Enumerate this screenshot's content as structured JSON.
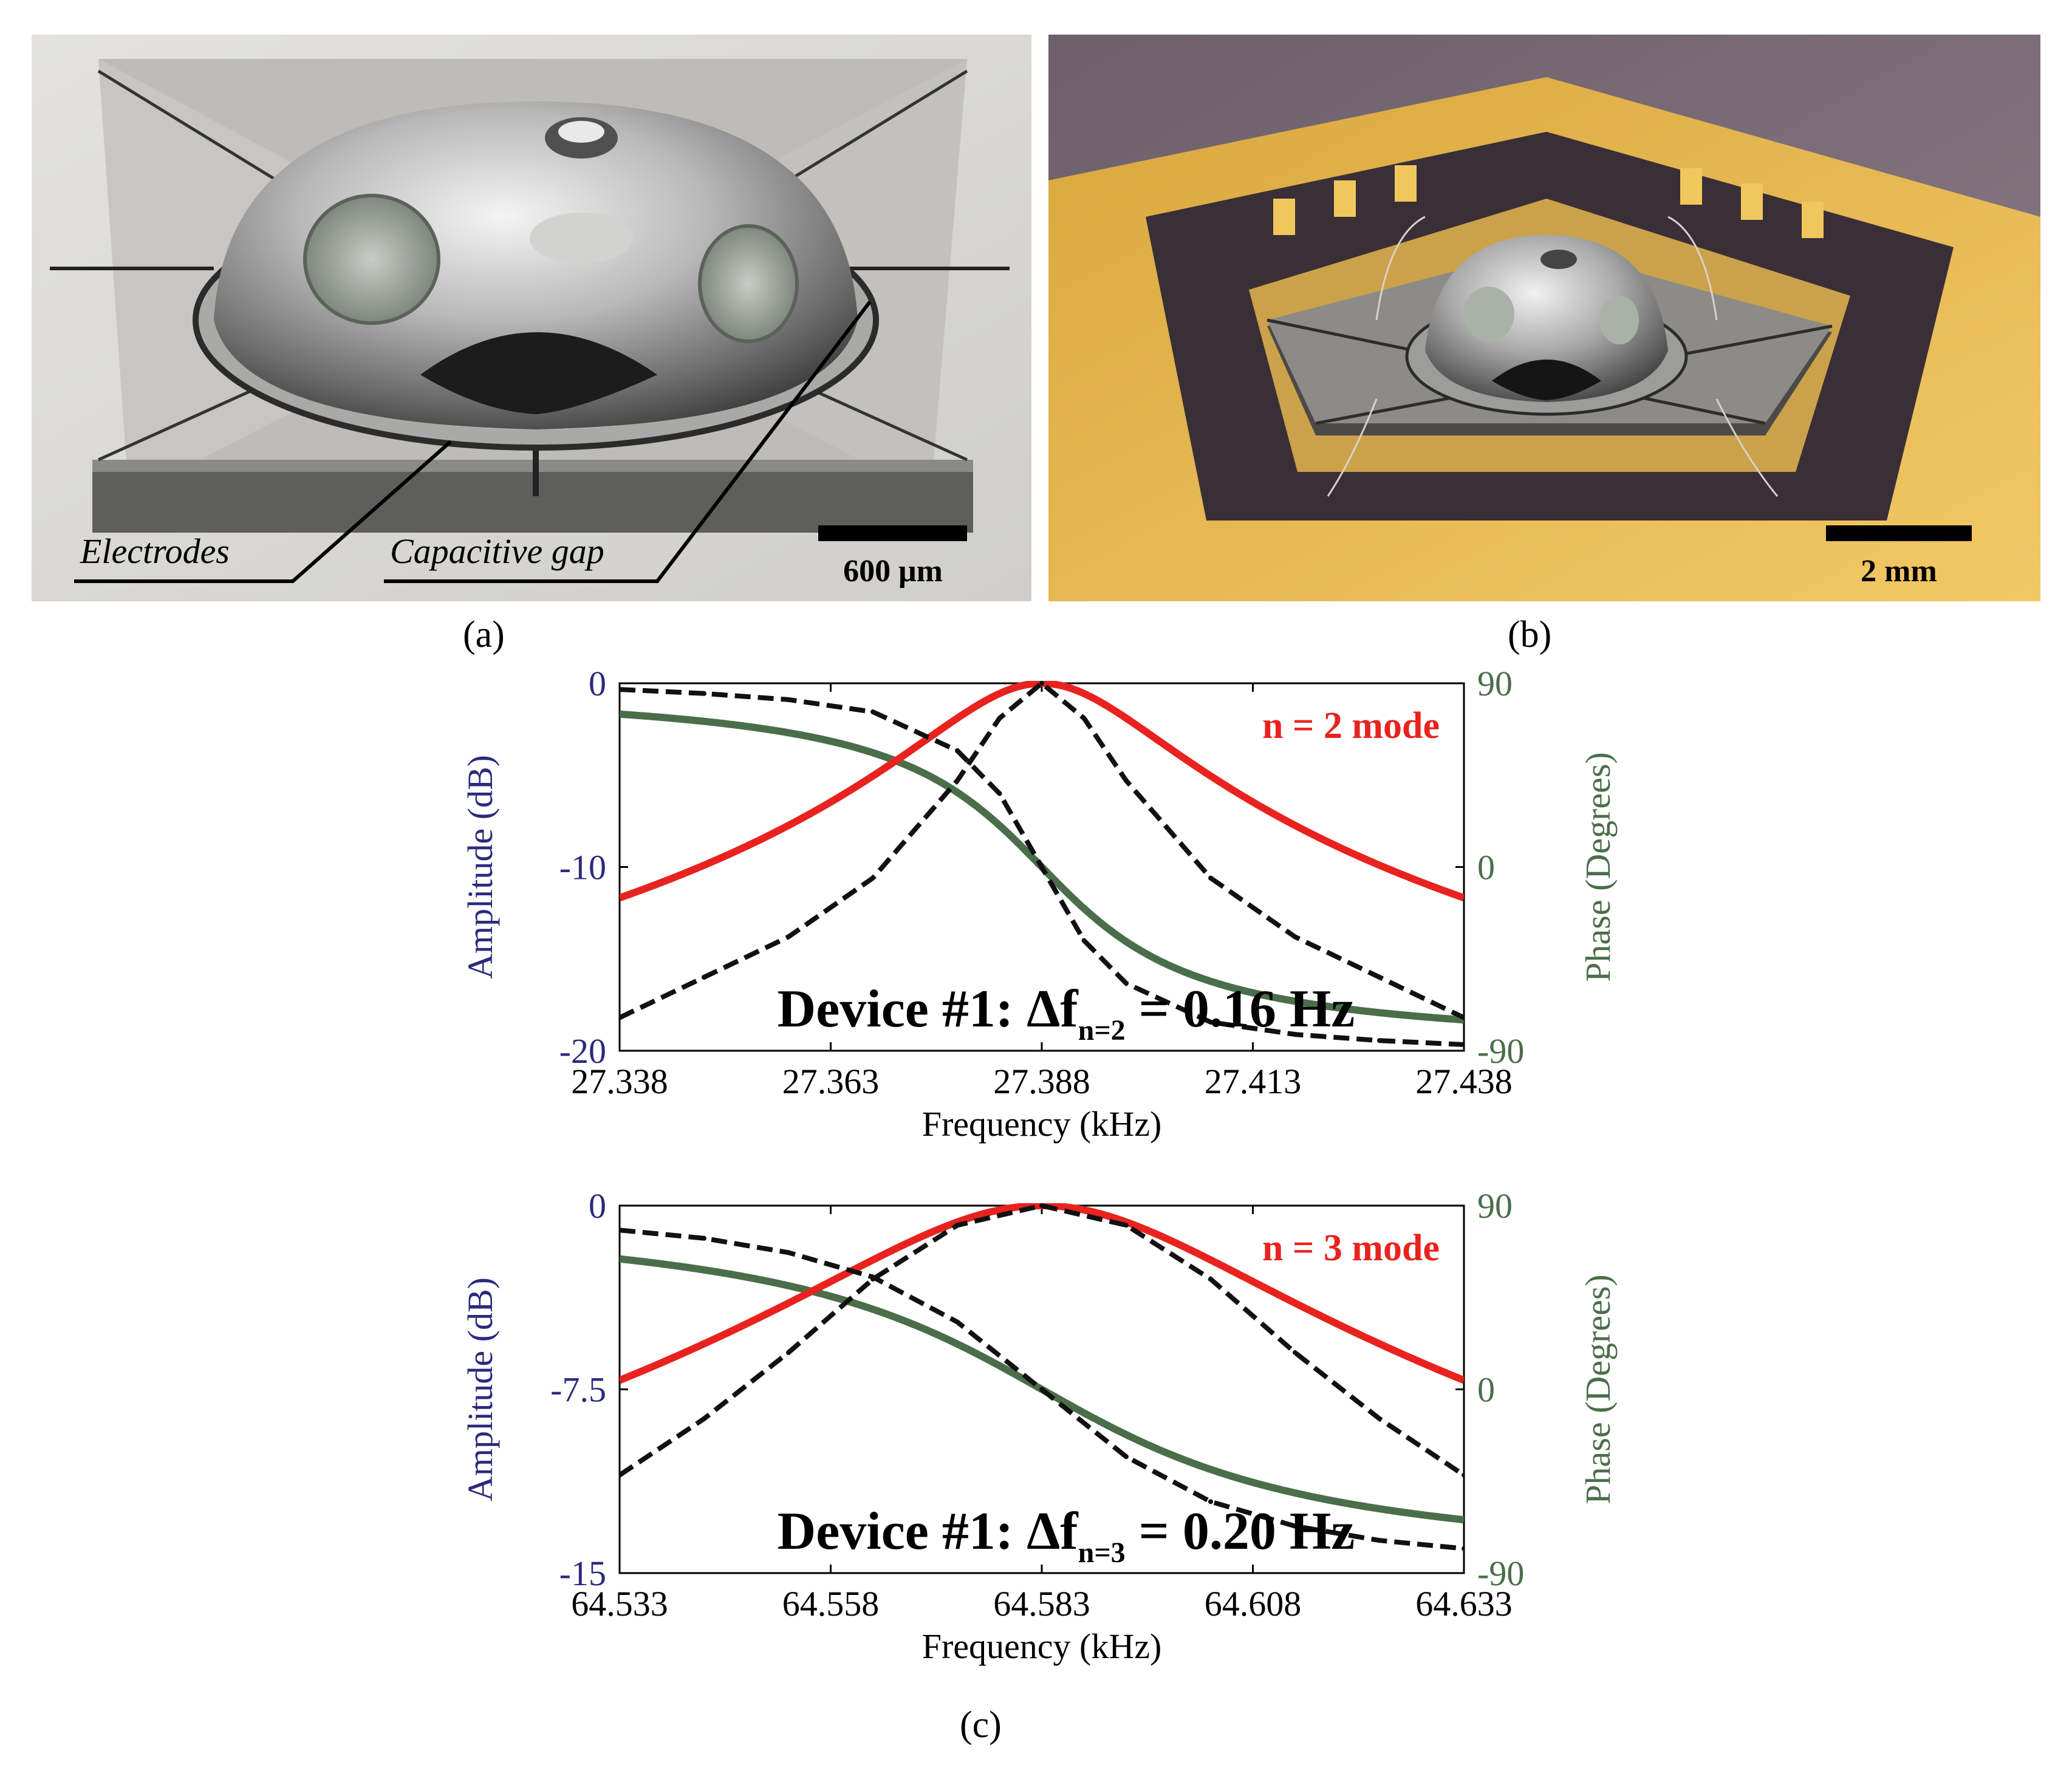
{
  "photo_a": {
    "labels": [
      "Electrodes",
      "Capacitive gap"
    ],
    "scale_bar": "600 μm",
    "caption": "(a)"
  },
  "photo_b": {
    "scale_bar": "2 mm",
    "caption": "(b)"
  },
  "panel_c_caption": "(c)",
  "colors": {
    "amplitude_axis": "#2b2a7d",
    "phase_axis": "#4a6e4a",
    "amplitude_fit": "#e8231f",
    "phase_fit": "#4a6e4a",
    "measured": "#111111",
    "mode_label": "#e8231f"
  },
  "chart_data": [
    {
      "type": "line",
      "mode_label": "n = 2 mode",
      "annotation": {
        "prefix": "Device #1: Δf",
        "subscript": "n=2",
        "suffix": " = 0.16 Hz"
      },
      "xlabel": "Frequency (kHz)",
      "ylabel_left": "Amplitude (dB)",
      "ylabel_right": "Phase (Degrees)",
      "xlim": [
        27.338,
        27.438
      ],
      "ylim_left": [
        -20,
        0
      ],
      "ylim_right": [
        -90,
        90
      ],
      "x_ticks": [
        "27.338",
        "27.363",
        "27.388",
        "27.413",
        "27.438"
      ],
      "y_ticks_left": [
        "0",
        "-10",
        "-20"
      ],
      "y_ticks_right": [
        "90",
        "0",
        "-90"
      ],
      "center_khz": 27.388,
      "half_width_khz": 0.0135,
      "series": [
        {
          "quantity": "amplitude",
          "x": [
            27.338,
            27.348,
            27.358,
            27.368,
            27.378,
            27.383,
            27.388,
            27.393,
            27.398,
            27.408,
            27.418,
            27.428,
            27.438
          ],
          "y": [
            -18.2,
            -16.0,
            -13.8,
            -10.6,
            -5.3,
            -1.9,
            0.0,
            -1.9,
            -5.3,
            -10.6,
            -13.8,
            -16.0,
            -18.2
          ]
        },
        {
          "quantity": "phase",
          "x": [
            27.338,
            27.348,
            27.358,
            27.368,
            27.378,
            27.383,
            27.388,
            27.393,
            27.398,
            27.408,
            27.418,
            27.428,
            27.438
          ],
          "y": [
            87,
            85,
            82,
            76,
            57,
            36,
            0,
            -36,
            -57,
            -76,
            -82,
            -85,
            -87
          ]
        }
      ]
    },
    {
      "type": "line",
      "mode_label": "n = 3 mode",
      "annotation": {
        "prefix": "Device #1: Δf",
        "subscript": "n=3",
        "suffix": " = 0.20 Hz"
      },
      "xlabel": "Frequency (kHz)",
      "ylabel_left": "Amplitude (dB)",
      "ylabel_right": "Phase (Degrees)",
      "xlim": [
        64.533,
        64.633
      ],
      "ylim_left": [
        -15,
        0
      ],
      "ylim_right": [
        -90,
        90
      ],
      "x_ticks": [
        "64.533",
        "64.558",
        "64.583",
        "64.608",
        "64.633"
      ],
      "y_ticks_left": [
        "0",
        "-7.5",
        "-15"
      ],
      "y_ticks_right": [
        "90",
        "0",
        "-90"
      ],
      "center_khz": 64.583,
      "half_width_khz": 0.0245,
      "series": [
        {
          "quantity": "amplitude",
          "x": [
            64.533,
            64.543,
            64.553,
            64.563,
            64.573,
            64.583,
            64.593,
            64.603,
            64.613,
            64.623,
            64.633
          ],
          "y": [
            -11.0,
            -8.7,
            -6.0,
            -3.0,
            -0.8,
            0.0,
            -0.8,
            -3.0,
            -6.0,
            -8.7,
            -11.0
          ]
        },
        {
          "quantity": "phase",
          "x": [
            64.533,
            64.543,
            64.553,
            64.563,
            64.573,
            64.583,
            64.593,
            64.603,
            64.613,
            64.623,
            64.633
          ],
          "y": [
            78,
            74,
            67,
            55,
            33,
            0,
            -33,
            -55,
            -67,
            -74,
            -78
          ]
        }
      ]
    }
  ]
}
